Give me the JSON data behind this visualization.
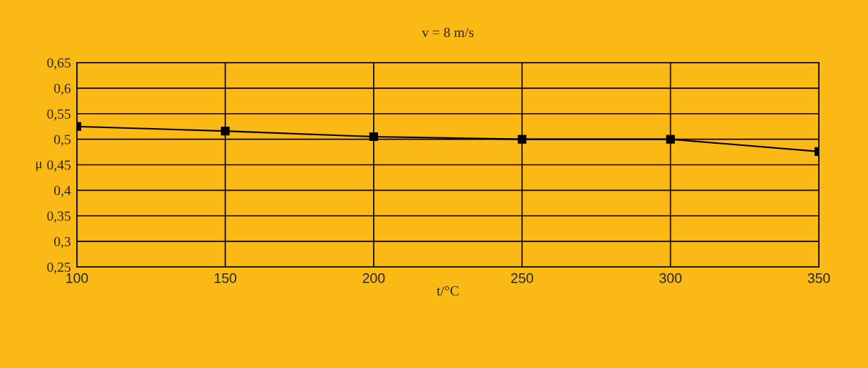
{
  "chart_data": {
    "type": "line",
    "title": "v = 8 m/s",
    "xlabel": "t/°C",
    "ylabel": "μ",
    "x": [
      100,
      150,
      200,
      250,
      300,
      350
    ],
    "series": [
      {
        "color": "#000000",
        "values": [
          0.525,
          0.516,
          0.505,
          0.5,
          0.5,
          0.476
        ]
      }
    ],
    "xlim": [
      100,
      350
    ],
    "xticks": [
      100,
      150,
      200,
      250,
      300,
      350
    ],
    "ylim": [
      0.25,
      0.65
    ],
    "yticks": [
      {
        "value": 0.25,
        "label": "0,25"
      },
      {
        "value": 0.3,
        "label": "0,3"
      },
      {
        "value": 0.35,
        "label": "0,35"
      },
      {
        "value": 0.4,
        "label": "0,4"
      },
      {
        "value": 0.45,
        "label": "0,45"
      },
      {
        "value": 0.5,
        "label": "0,5"
      },
      {
        "value": 0.55,
        "label": "0,55"
      },
      {
        "value": 0.6,
        "label": "0,6"
      },
      {
        "value": 0.65,
        "label": "0,65"
      }
    ],
    "grid": true,
    "legend": false,
    "marker": "square",
    "line_style": "solid"
  }
}
